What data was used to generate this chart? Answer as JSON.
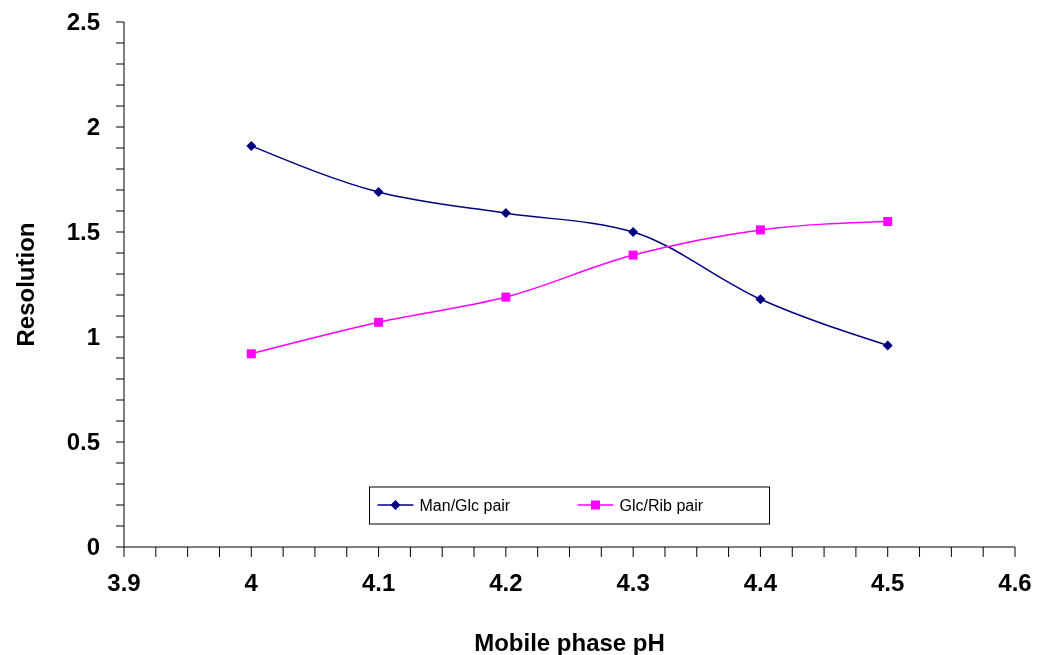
{
  "chart_data": {
    "type": "line",
    "xlabel": "Mobile phase pH",
    "ylabel": "Resolution",
    "x": [
      4,
      4.1,
      4.2,
      4.3,
      4.4,
      4.5
    ],
    "series": [
      {
        "name": "Man/Glc pair",
        "color": "#000080",
        "marker": "diamond",
        "values": [
          1.91,
          1.69,
          1.59,
          1.5,
          1.18,
          0.96
        ]
      },
      {
        "name": "Glc/Rib pair",
        "color": "#ff00ff",
        "marker": "square",
        "values": [
          0.92,
          1.07,
          1.19,
          1.39,
          1.51,
          1.55
        ]
      }
    ],
    "xlim": [
      3.9,
      4.6
    ],
    "xticks": [
      3.9,
      {
        "value": 3.925,
        "label": null
      },
      {
        "value": 3.95,
        "label": null
      },
      {
        "value": 3.975,
        "label": null
      },
      4,
      {
        "value": 4.025,
        "label": null
      },
      {
        "value": 4.05,
        "label": null
      },
      {
        "value": 4.075,
        "label": null
      },
      4.1,
      {
        "value": 4.125,
        "label": null
      },
      {
        "value": 4.15,
        "label": null
      },
      {
        "value": 4.175,
        "label": null
      },
      4.2,
      {
        "value": 4.225,
        "label": null
      },
      {
        "value": 4.25,
        "label": null
      },
      {
        "value": 4.275,
        "label": null
      },
      4.3,
      {
        "value": 4.325,
        "label": null
      },
      {
        "value": 4.35,
        "label": null
      },
      {
        "value": 4.375,
        "label": null
      },
      4.4,
      {
        "value": 4.425,
        "label": null
      },
      {
        "value": 4.45,
        "label": null
      },
      {
        "value": 4.475,
        "label": null
      },
      4.5,
      {
        "value": 4.525,
        "label": null
      },
      {
        "value": 4.55,
        "label": null
      },
      {
        "value": 4.575,
        "label": null
      },
      4.6
    ],
    "ylim": [
      0,
      2.5
    ],
    "yticks": [
      0,
      {
        "value": 0.1,
        "label": null
      },
      {
        "value": 0.2,
        "label": null
      },
      {
        "value": 0.3,
        "label": null
      },
      {
        "value": 0.4,
        "label": null
      },
      0.5,
      {
        "value": 0.6,
        "label": null
      },
      {
        "value": 0.7,
        "label": null
      },
      {
        "value": 0.8,
        "label": null
      },
      {
        "value": 0.9,
        "label": null
      },
      1,
      {
        "value": 1.1,
        "label": null
      },
      {
        "value": 1.2,
        "label": null
      },
      {
        "value": 1.3,
        "label": null
      },
      {
        "value": 1.4,
        "label": null
      },
      1.5,
      {
        "value": 1.6,
        "label": null
      },
      {
        "value": 1.7,
        "label": null
      },
      {
        "value": 1.8,
        "label": null
      },
      {
        "value": 1.9,
        "label": null
      },
      2,
      {
        "value": 2.1,
        "label": null
      },
      {
        "value": 2.2,
        "label": null
      },
      {
        "value": 2.3,
        "label": null
      },
      {
        "value": 2.4,
        "label": null
      },
      2.5
    ],
    "grid": false,
    "legend": "bottom",
    "line_style": "solid"
  }
}
